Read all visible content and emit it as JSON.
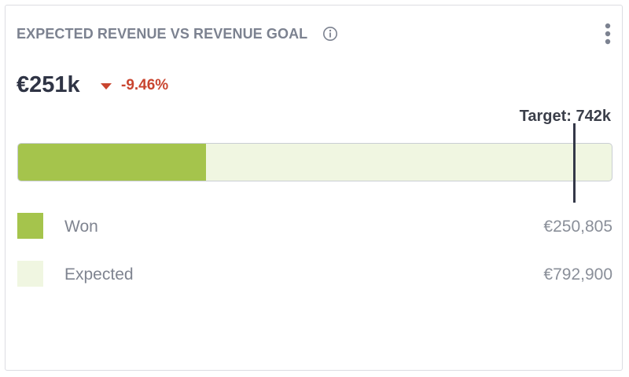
{
  "widget": {
    "title": "EXPECTED REVENUE VS REVENUE GOAL",
    "info_icon": "info-circle-icon",
    "menu_icon": "kebab-menu-icon"
  },
  "summary": {
    "value": "€251k",
    "trend": "down",
    "trend_icon": "triangle-down-icon",
    "delta": "-9.46%"
  },
  "target": {
    "label": "Target: 742k",
    "value": 742000
  },
  "progress": {
    "scale_max": 792900,
    "won": 250805,
    "target": 742000
  },
  "legend": [
    {
      "label": "Won",
      "value": "€250,805",
      "color": "#a5c44c"
    },
    {
      "label": "Expected",
      "value": "€792,900",
      "color": "#f0f6e1"
    }
  ],
  "colors": {
    "won": "#a5c44c",
    "expected": "#f0f6e1",
    "negative": "#c9452f",
    "marker": "#343848"
  }
}
